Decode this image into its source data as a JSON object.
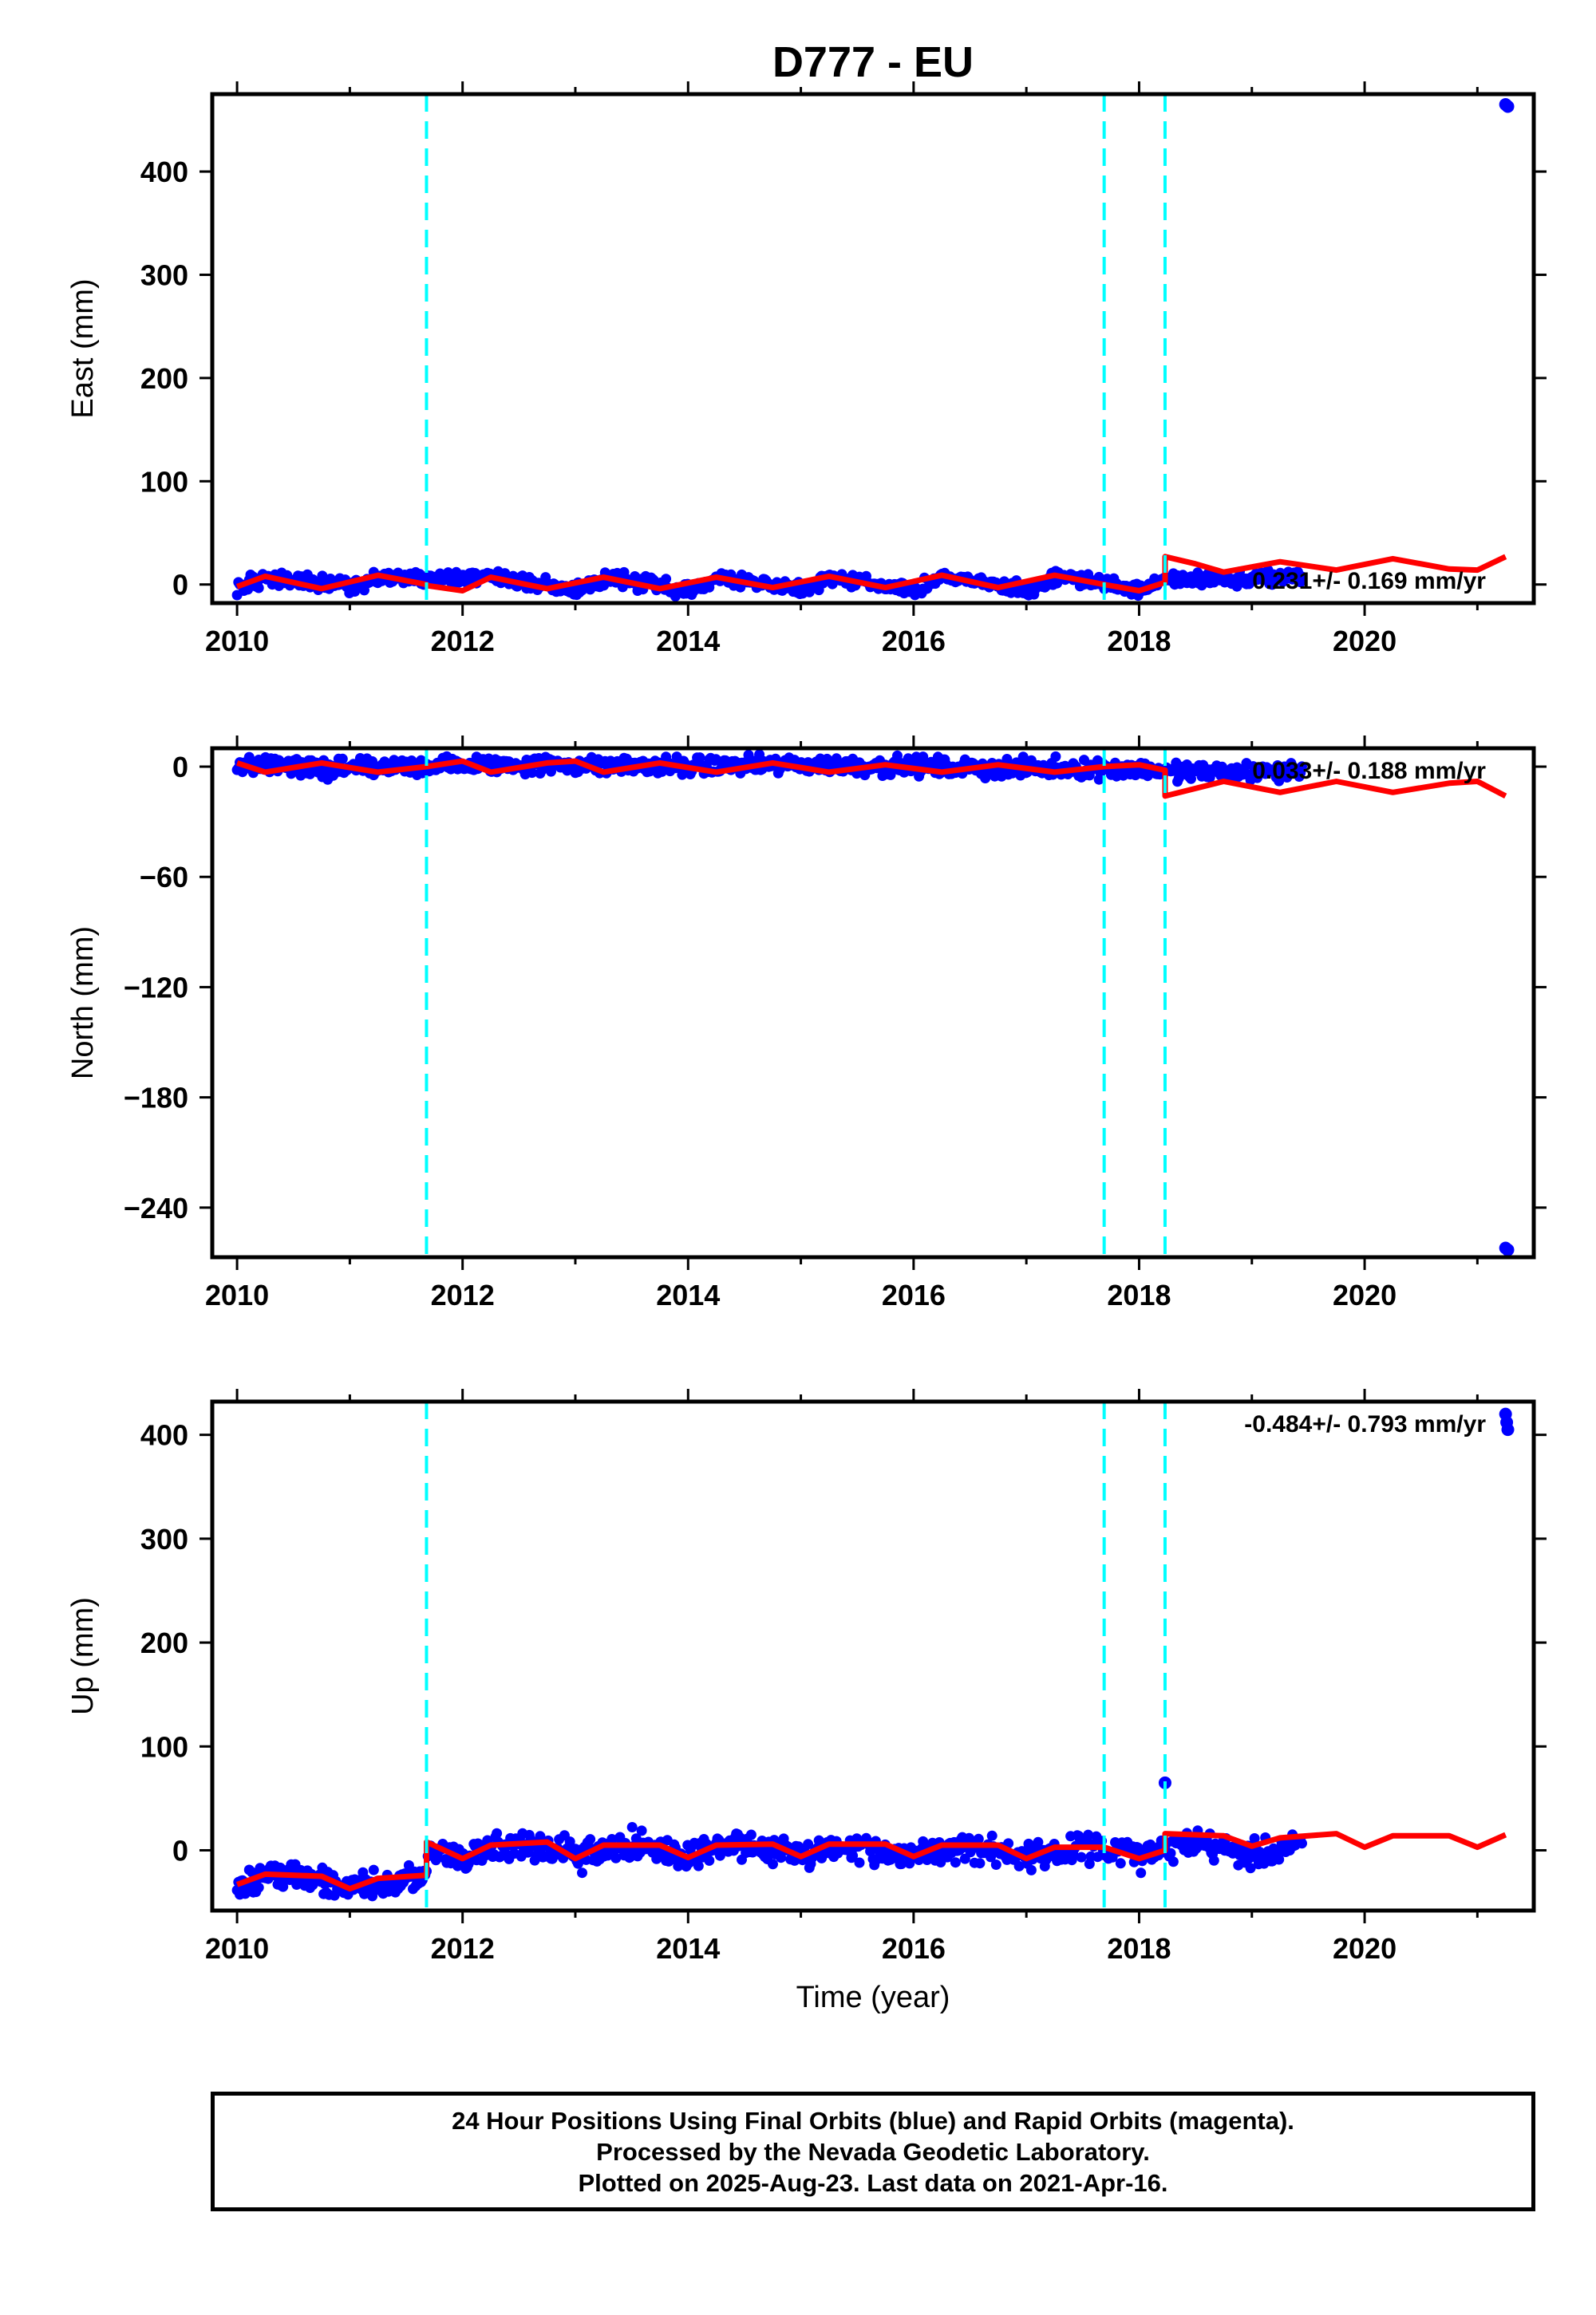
{
  "title": "D777 - EU",
  "xlabel": "Time (year)",
  "footer": {
    "line1": "24 Hour Positions Using Final Orbits (blue) and Rapid Orbits (magenta).",
    "line2": "Processed by the Nevada Geodetic Laboratory.",
    "line3": "Plotted on 2025-Aug-23. Last data on 2021-Apr-16."
  },
  "colors": {
    "data": "#0000ff",
    "model": "#ff0000",
    "steps": "#00ffff",
    "frame": "#000000"
  },
  "chart_data": [
    {
      "type": "scatter",
      "panel": "east",
      "ylabel": "East (mm)",
      "xlim": [
        2009.78,
        2021.5
      ],
      "ylim": [
        -18,
        475
      ],
      "xticks": [
        2010,
        2012,
        2014,
        2016,
        2018,
        2020
      ],
      "yticks": [
        0,
        100,
        200,
        300,
        400
      ],
      "rate_label": "0.231+/- 0.169 mm/yr",
      "step_epochs": [
        2011.68,
        2017.69,
        2018.23
      ],
      "outliers": [
        [
          2021.25,
          465
        ],
        [
          2021.27,
          463
        ]
      ],
      "data_trend": [
        [
          2010.0,
          -2
        ],
        [
          2010.3,
          6
        ],
        [
          2011.0,
          -2
        ],
        [
          2011.3,
          7
        ],
        [
          2012.3,
          7
        ],
        [
          2013.0,
          -5
        ],
        [
          2013.3,
          7
        ],
        [
          2014.0,
          -6
        ],
        [
          2014.3,
          7
        ],
        [
          2015.0,
          -5
        ],
        [
          2015.3,
          8
        ],
        [
          2016.0,
          -6
        ],
        [
          2016.3,
          8
        ],
        [
          2017.0,
          -6
        ],
        [
          2017.3,
          8
        ],
        [
          2018.0,
          -5
        ],
        [
          2018.25,
          4
        ],
        [
          2018.6,
          6
        ],
        [
          2019.0,
          5
        ],
        [
          2019.4,
          8
        ]
      ],
      "model": [
        [
          2010.0,
          -2
        ],
        [
          2010.25,
          8
        ],
        [
          2010.75,
          -4
        ],
        [
          2011.25,
          9
        ],
        [
          2011.68,
          0
        ],
        [
          2011.68,
          -1
        ],
        [
          2012.0,
          -6
        ],
        [
          2012.25,
          7
        ],
        [
          2012.75,
          -4
        ],
        [
          2013.25,
          7
        ],
        [
          2013.75,
          -4
        ],
        [
          2014.25,
          7
        ],
        [
          2014.75,
          -3
        ],
        [
          2015.25,
          8
        ],
        [
          2015.75,
          -3
        ],
        [
          2016.25,
          9
        ],
        [
          2016.75,
          -3
        ],
        [
          2017.25,
          9
        ],
        [
          2017.69,
          0
        ],
        [
          2017.69,
          0
        ],
        [
          2018.0,
          -6
        ],
        [
          2018.23,
          2
        ],
        [
          2018.23,
          27
        ],
        [
          2018.5,
          20
        ],
        [
          2018.75,
          12
        ],
        [
          2019.25,
          22
        ],
        [
          2019.75,
          14
        ],
        [
          2020.25,
          25
        ],
        [
          2020.75,
          15
        ],
        [
          2021.0,
          14
        ],
        [
          2021.25,
          27
        ]
      ],
      "noise": 4,
      "data_end": 2019.45
    },
    {
      "type": "scatter",
      "panel": "north",
      "ylabel": "North (mm)",
      "xlim": [
        2009.78,
        2021.5
      ],
      "ylim": [
        -267,
        10
      ],
      "xticks": [
        2010,
        2012,
        2014,
        2016,
        2018,
        2020
      ],
      "yticks": [
        0,
        -60,
        -120,
        -180,
        -240
      ],
      "rate_label": "0.033+/- 0.188 mm/yr",
      "step_epochs": [
        2011.68,
        2017.69,
        2018.23
      ],
      "outliers": [
        [
          2021.25,
          -262
        ],
        [
          2021.27,
          -263
        ]
      ],
      "data_trend": [
        [
          2010.0,
          1
        ],
        [
          2011.0,
          -1
        ],
        [
          2012.0,
          1
        ],
        [
          2013.0,
          1
        ],
        [
          2014.0,
          0
        ],
        [
          2015.0,
          1
        ],
        [
          2016.0,
          0
        ],
        [
          2017.0,
          -1
        ],
        [
          2018.0,
          -1
        ],
        [
          2018.23,
          -3
        ],
        [
          2019.0,
          -3
        ],
        [
          2019.4,
          -2
        ]
      ],
      "model": [
        [
          2010.0,
          2
        ],
        [
          2010.25,
          -3
        ],
        [
          2010.75,
          2
        ],
        [
          2011.25,
          -3
        ],
        [
          2011.68,
          0
        ],
        [
          2012.0,
          3
        ],
        [
          2012.25,
          -3
        ],
        [
          2012.75,
          2
        ],
        [
          2013.0,
          3
        ],
        [
          2013.25,
          -3
        ],
        [
          2013.75,
          2
        ],
        [
          2014.25,
          -3
        ],
        [
          2014.75,
          2
        ],
        [
          2015.25,
          -3
        ],
        [
          2015.75,
          1
        ],
        [
          2016.25,
          -3
        ],
        [
          2016.75,
          1
        ],
        [
          2017.25,
          -3
        ],
        [
          2017.69,
          0
        ],
        [
          2018.0,
          1
        ],
        [
          2018.23,
          -2
        ],
        [
          2018.23,
          -16
        ],
        [
          2018.75,
          -8
        ],
        [
          2019.25,
          -14
        ],
        [
          2019.75,
          -8
        ],
        [
          2020.25,
          -14
        ],
        [
          2020.75,
          -9
        ],
        [
          2021.0,
          -8
        ],
        [
          2021.25,
          -16
        ]
      ],
      "noise": 3,
      "data_end": 2019.45
    },
    {
      "type": "scatter",
      "panel": "up",
      "ylabel": "Up (mm)",
      "xlim": [
        2009.78,
        2021.5
      ],
      "ylim": [
        -58,
        432
      ],
      "xticks": [
        2010,
        2012,
        2014,
        2016,
        2018,
        2020
      ],
      "yticks": [
        0,
        100,
        200,
        300,
        400
      ],
      "rate_label": "-0.484+/- 0.793 mm/yr",
      "step_epochs": [
        2011.68,
        2017.69,
        2018.23
      ],
      "outliers": [
        [
          2018.23,
          65
        ],
        [
          2021.25,
          420
        ],
        [
          2021.26,
          412
        ],
        [
          2021.27,
          405
        ]
      ],
      "data_trend": [
        [
          2010.0,
          -33
        ],
        [
          2010.5,
          -22
        ],
        [
          2011.0,
          -38
        ],
        [
          2011.5,
          -28
        ],
        [
          2011.68,
          -25
        ],
        [
          2011.7,
          0
        ],
        [
          2012.0,
          -5
        ],
        [
          2012.5,
          8
        ],
        [
          2013.0,
          -5
        ],
        [
          2013.5,
          5
        ],
        [
          2014.0,
          -5
        ],
        [
          2014.5,
          7
        ],
        [
          2015.0,
          -6
        ],
        [
          2015.5,
          6
        ],
        [
          2016.0,
          -6
        ],
        [
          2016.5,
          5
        ],
        [
          2017.0,
          -8
        ],
        [
          2017.5,
          4
        ],
        [
          2018.0,
          -6
        ],
        [
          2018.5,
          8
        ],
        [
          2019.0,
          -5
        ],
        [
          2019.45,
          5
        ]
      ],
      "model": [
        [
          2010.0,
          -33
        ],
        [
          2010.25,
          -23
        ],
        [
          2010.75,
          -25
        ],
        [
          2011.0,
          -37
        ],
        [
          2011.25,
          -27
        ],
        [
          2011.68,
          -24
        ],
        [
          2011.68,
          8
        ],
        [
          2012.0,
          -8
        ],
        [
          2012.25,
          5
        ],
        [
          2012.75,
          8
        ],
        [
          2013.0,
          -8
        ],
        [
          2013.25,
          5
        ],
        [
          2013.75,
          5
        ],
        [
          2014.0,
          -7
        ],
        [
          2014.25,
          5
        ],
        [
          2014.75,
          6
        ],
        [
          2015.0,
          -6
        ],
        [
          2015.25,
          6
        ],
        [
          2015.75,
          6
        ],
        [
          2016.0,
          -6
        ],
        [
          2016.25,
          5
        ],
        [
          2016.75,
          5
        ],
        [
          2017.0,
          -8
        ],
        [
          2017.25,
          3
        ],
        [
          2017.69,
          3
        ],
        [
          2018.0,
          -8
        ],
        [
          2018.23,
          0
        ],
        [
          2018.23,
          16
        ],
        [
          2018.75,
          14
        ],
        [
          2019.0,
          4
        ],
        [
          2019.25,
          12
        ],
        [
          2019.75,
          16
        ],
        [
          2020.0,
          3
        ],
        [
          2020.25,
          14
        ],
        [
          2020.75,
          14
        ],
        [
          2021.0,
          3
        ],
        [
          2021.25,
          15
        ]
      ],
      "noise": 8,
      "data_end": 2019.45
    }
  ]
}
